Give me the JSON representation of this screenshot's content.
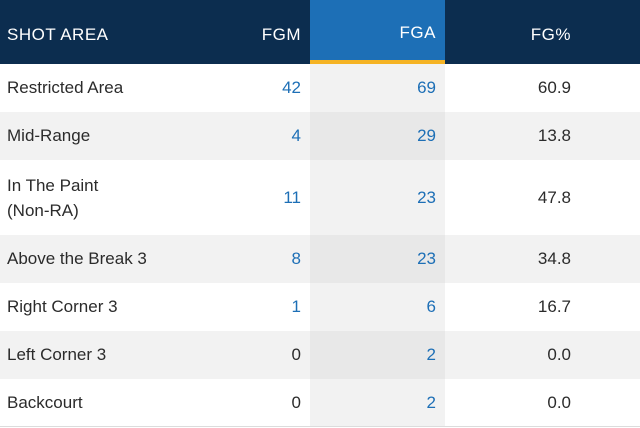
{
  "header": {
    "area": "SHOT AREA",
    "fgm": "FGM",
    "fga": "FGA",
    "fgp": "FG%"
  },
  "rows": [
    {
      "area": "Restricted Area",
      "fgm": "42",
      "fga": "69",
      "fgp": "60.9",
      "fgm_link": true,
      "fga_link": true
    },
    {
      "area": "Mid-Range",
      "fgm": "4",
      "fga": "29",
      "fgp": "13.8",
      "fgm_link": true,
      "fga_link": true
    },
    {
      "area": "In The Paint (Non-RA)",
      "fgm": "11",
      "fga": "23",
      "fgp": "47.8",
      "fgm_link": true,
      "fga_link": true
    },
    {
      "area": "Above the Break 3",
      "fgm": "8",
      "fga": "23",
      "fgp": "34.8",
      "fgm_link": true,
      "fga_link": true
    },
    {
      "area": "Right Corner 3",
      "fgm": "1",
      "fga": "6",
      "fgp": "16.7",
      "fgm_link": true,
      "fga_link": true
    },
    {
      "area": "Left Corner 3",
      "fgm": "0",
      "fga": "2",
      "fgp": "0.0",
      "fgm_link": false,
      "fga_link": true
    },
    {
      "area": "Backcourt",
      "fgm": "0",
      "fga": "2",
      "fgp": "0.0",
      "fgm_link": false,
      "fga_link": true
    }
  ],
  "colors": {
    "header_bg": "#0c2d4f",
    "highlight_col": "#1d6fb6",
    "accent_underline": "#f5b324",
    "link": "#1d6fb6"
  }
}
